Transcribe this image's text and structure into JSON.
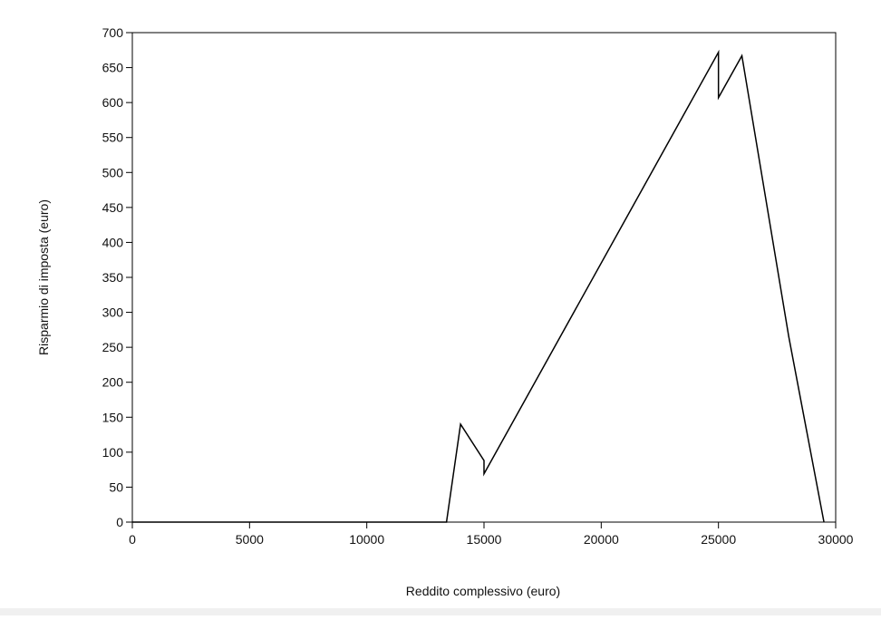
{
  "chart_data": {
    "type": "line",
    "xlabel": "Reddito complessivo (euro)",
    "ylabel": "Risparmio di imposta (euro)",
    "x": [
      0,
      13400,
      14000,
      15000,
      15000,
      25000,
      25000,
      26000,
      28000,
      29500
    ],
    "series": [
      {
        "color": "#000000",
        "values": [
          0,
          0,
          140,
          88,
          69,
          672,
          607,
          667,
          265,
          0
        ]
      }
    ],
    "xlim": [
      0,
      30000
    ],
    "ylim": [
      0,
      700
    ],
    "xticks": [
      0,
      5000,
      10000,
      15000,
      20000,
      25000,
      30000
    ],
    "yticks": [
      0,
      50,
      100,
      150,
      200,
      250,
      300,
      350,
      400,
      450,
      500,
      550,
      600,
      650,
      700
    ],
    "grid": false
  }
}
